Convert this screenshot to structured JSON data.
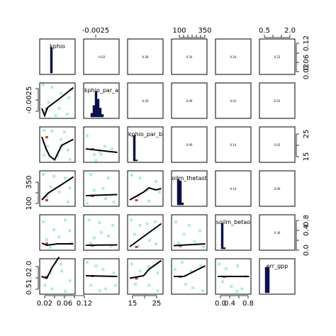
{
  "chart_data": {
    "type": "scatter",
    "variables": [
      "kphio",
      "kphio_par_a",
      "kphio_par_b",
      "soilm_thetastar",
      "soilm_betao",
      "err_gpp"
    ],
    "diagonal_labels": [
      "kphio",
      "kphio_par_a",
      "kphio_par_b",
      "oilm_thetast",
      "soilm_betao",
      "err_gpp"
    ],
    "axis_ticks": {
      "kphio": [
        "0.02",
        "0.06",
        "0.12"
      ],
      "kphio_par_a": [
        "-0.0025"
      ],
      "kphio_par_b": [
        "15",
        "25"
      ],
      "soilm_thetastar": [
        "100",
        "350"
      ],
      "soilm_betao": [
        "0.0",
        "0.4",
        "0.8"
      ],
      "err_gpp": [
        "0.5",
        "1.0",
        "2.0"
      ]
    },
    "correlations": [
      {
        "row": 0,
        "col": 1,
        "value": "-0.03"
      },
      {
        "row": 0,
        "col": 2,
        "value": "0.28"
      },
      {
        "row": 0,
        "col": 3,
        "value": "0.24"
      },
      {
        "row": 0,
        "col": 4,
        "value": "0.24"
      },
      {
        "row": 0,
        "col": 5,
        "value": "0.22"
      },
      {
        "row": 1,
        "col": 2,
        "value": "0.20"
      },
      {
        "row": 1,
        "col": 3,
        "value": "0.09"
      },
      {
        "row": 1,
        "col": 4,
        "value": "0.01"
      },
      {
        "row": 1,
        "col": 5,
        "value": "0.01"
      },
      {
        "row": 2,
        "col": 3,
        "value": "0.90"
      },
      {
        "row": 2,
        "col": 4,
        "value": "0.14"
      },
      {
        "row": 2,
        "col": 5,
        "value": "0.02"
      },
      {
        "row": 3,
        "col": 4,
        "value": "0.14"
      },
      {
        "row": 3,
        "col": 5,
        "value": "0.00"
      },
      {
        "row": 4,
        "col": 5,
        "value": "0.36"
      }
    ],
    "histograms": [
      [
        0,
        0,
        1,
        0,
        0
      ],
      [
        0.15,
        0.45,
        1.0,
        0.7,
        0.35,
        0.1
      ],
      [
        1.0,
        0.04
      ],
      [
        1.0,
        0.94,
        0.08
      ],
      [
        1.0,
        0.05
      ],
      [
        1.0
      ]
    ],
    "smooth_lines": {
      "1-0": [
        [
          0.06,
          0.72
        ],
        [
          0.14,
          0.92
        ],
        [
          0.22,
          0.7
        ],
        [
          0.32,
          0.62
        ],
        [
          0.55,
          0.45
        ],
        [
          0.95,
          0.13
        ]
      ],
      "2-0": [
        [
          0.06,
          0.28
        ],
        [
          0.18,
          0.62
        ],
        [
          0.28,
          0.82
        ],
        [
          0.42,
          0.93
        ],
        [
          0.62,
          0.52
        ],
        [
          0.95,
          0.35
        ]
      ],
      "2-1": [
        [
          0.06,
          0.62
        ],
        [
          0.95,
          0.72
        ]
      ],
      "3-0": [
        [
          0.06,
          0.82
        ],
        [
          0.25,
          0.62
        ],
        [
          0.6,
          0.4
        ],
        [
          0.95,
          0.17
        ]
      ],
      "3-1": [
        [
          0.06,
          0.7
        ],
        [
          0.95,
          0.67
        ]
      ],
      "3-2": [
        [
          0.06,
          0.82
        ],
        [
          0.45,
          0.6
        ],
        [
          0.6,
          0.48
        ],
        [
          0.8,
          0.54
        ],
        [
          0.95,
          0.5
        ]
      ],
      "4-0": [
        [
          0.06,
          0.8
        ],
        [
          0.2,
          0.86
        ],
        [
          0.5,
          0.82
        ],
        [
          0.95,
          0.82
        ]
      ],
      "4-1": [
        [
          0.06,
          0.86
        ],
        [
          0.95,
          0.85
        ]
      ],
      "4-2": [
        [
          0.06,
          0.9
        ],
        [
          0.95,
          0.25
        ]
      ],
      "4-3": [
        [
          0.06,
          0.87
        ],
        [
          0.95,
          0.82
        ]
      ],
      "5-0": [
        [
          0.05,
          0.5
        ],
        [
          0.2,
          0.55
        ],
        [
          0.35,
          0.25
        ],
        [
          0.55,
          -0.05
        ]
      ],
      "5-1": [
        [
          0.06,
          0.48
        ],
        [
          0.95,
          0.5
        ]
      ],
      "5-2": [
        [
          0.06,
          0.55
        ],
        [
          0.45,
          0.48
        ],
        [
          0.6,
          0.3
        ],
        [
          0.95,
          0.05
        ]
      ],
      "5-3": [
        [
          0.06,
          0.5
        ],
        [
          0.35,
          0.5
        ],
        [
          0.95,
          0.2
        ]
      ],
      "5-4": [
        [
          0.06,
          0.5
        ],
        [
          0.95,
          0.5
        ]
      ]
    },
    "points": {
      "1-0": [
        [
          0.1,
          0.05
        ],
        [
          0.35,
          0.12
        ],
        [
          0.6,
          0.3
        ],
        [
          0.82,
          0.42
        ],
        [
          0.25,
          0.55
        ],
        [
          0.55,
          0.72
        ],
        [
          0.78,
          0.88
        ],
        [
          0.15,
          0.8
        ],
        [
          0.45,
          0.92
        ],
        [
          0.9,
          0.18
        ]
      ],
      "2-0": [
        [
          0.12,
          0.1
        ],
        [
          0.35,
          0.12
        ],
        [
          0.6,
          0.35
        ],
        [
          0.8,
          0.65
        ],
        [
          0.22,
          0.55
        ],
        [
          0.5,
          0.82
        ],
        [
          0.85,
          0.92
        ],
        [
          0.12,
          0.8
        ],
        [
          0.7,
          0.15
        ]
      ],
      "2-1": [
        [
          0.1,
          0.25
        ],
        [
          0.5,
          0.78
        ],
        [
          0.6,
          0.55
        ],
        [
          0.3,
          0.78
        ],
        [
          0.8,
          0.62
        ],
        [
          0.45,
          0.7
        ],
        [
          0.35,
          0.95
        ]
      ],
      "3-0": [
        [
          0.1,
          0.1
        ],
        [
          0.4,
          0.15
        ],
        [
          0.72,
          0.2
        ],
        [
          0.3,
          0.45
        ],
        [
          0.85,
          0.48
        ],
        [
          0.2,
          0.75
        ],
        [
          0.55,
          0.6
        ],
        [
          0.8,
          0.88
        ]
      ],
      "3-1": [
        [
          0.2,
          0.1
        ],
        [
          0.3,
          0.55
        ],
        [
          0.55,
          0.5
        ],
        [
          0.7,
          0.2
        ],
        [
          0.85,
          0.88
        ],
        [
          0.1,
          0.92
        ],
        [
          0.62,
          0.78
        ]
      ],
      "3-2": [
        [
          0.12,
          0.12
        ],
        [
          0.35,
          0.2
        ],
        [
          0.55,
          0.55
        ],
        [
          0.8,
          0.3
        ],
        [
          0.3,
          0.72
        ],
        [
          0.6,
          0.85
        ],
        [
          0.9,
          0.6
        ]
      ],
      "4-0": [
        [
          0.1,
          0.2
        ],
        [
          0.4,
          0.42
        ],
        [
          0.72,
          0.15
        ],
        [
          0.2,
          0.7
        ],
        [
          0.55,
          0.62
        ],
        [
          0.85,
          0.45
        ],
        [
          0.3,
          0.92
        ],
        [
          0.9,
          0.8
        ]
      ],
      "4-1": [
        [
          0.15,
          0.15
        ],
        [
          0.45,
          0.22
        ],
        [
          0.82,
          0.3
        ],
        [
          0.3,
          0.65
        ],
        [
          0.7,
          0.6
        ],
        [
          0.5,
          0.5
        ],
        [
          0.2,
          0.8
        ],
        [
          0.78,
          0.88
        ]
      ],
      "4-2": [
        [
          0.1,
          0.15
        ],
        [
          0.35,
          0.3
        ],
        [
          0.55,
          0.25
        ],
        [
          0.78,
          0.2
        ],
        [
          0.2,
          0.55
        ],
        [
          0.62,
          0.72
        ],
        [
          0.8,
          0.82
        ],
        [
          0.3,
          0.88
        ]
      ],
      "4-3": [
        [
          0.12,
          0.2
        ],
        [
          0.35,
          0.55
        ],
        [
          0.5,
          0.3
        ],
        [
          0.8,
          0.45
        ],
        [
          0.2,
          0.8
        ],
        [
          0.65,
          0.75
        ],
        [
          0.9,
          0.9
        ]
      ],
      "4-4": [
        [
          0.2,
          0.1
        ],
        [
          0.15,
          0.25
        ],
        [
          0.1,
          0.45
        ],
        [
          0.3,
          0.62
        ],
        [
          0.45,
          0.78
        ],
        [
          0.35,
          0.88
        ],
        [
          0.85,
          0.35
        ],
        [
          0.7,
          0.92
        ]
      ],
      "5-0": [
        [
          0.45,
          0.1
        ],
        [
          0.6,
          0.15
        ],
        [
          0.62,
          0.35
        ],
        [
          0.85,
          0.62
        ],
        [
          0.15,
          0.75
        ],
        [
          0.35,
          0.85
        ],
        [
          0.72,
          0.92
        ],
        [
          0.3,
          0.4
        ]
      ],
      "5-1": [
        [
          0.1,
          0.1
        ],
        [
          0.35,
          0.2
        ],
        [
          0.55,
          0.3
        ],
        [
          0.85,
          0.4
        ],
        [
          0.2,
          0.75
        ],
        [
          0.62,
          0.85
        ],
        [
          0.9,
          0.75
        ],
        [
          0.45,
          0.9
        ]
      ],
      "5-2": [
        [
          0.12,
          0.15
        ],
        [
          0.35,
          0.35
        ],
        [
          0.6,
          0.22
        ],
        [
          0.85,
          0.4
        ],
        [
          0.22,
          0.72
        ],
        [
          0.6,
          0.75
        ],
        [
          0.85,
          0.9
        ]
      ],
      "5-3": [
        [
          0.1,
          0.3
        ],
        [
          0.3,
          0.1
        ],
        [
          0.55,
          0.35
        ],
        [
          0.82,
          0.2
        ],
        [
          0.4,
          0.72
        ],
        [
          0.6,
          0.82
        ],
        [
          0.88,
          0.9
        ]
      ],
      "5-4": [
        [
          0.1,
          0.15
        ],
        [
          0.3,
          0.28
        ],
        [
          0.62,
          0.2
        ],
        [
          0.85,
          0.5
        ],
        [
          0.2,
          0.65
        ],
        [
          0.45,
          0.78
        ],
        [
          0.75,
          0.85
        ],
        [
          0.6,
          0.92
        ]
      ]
    }
  }
}
